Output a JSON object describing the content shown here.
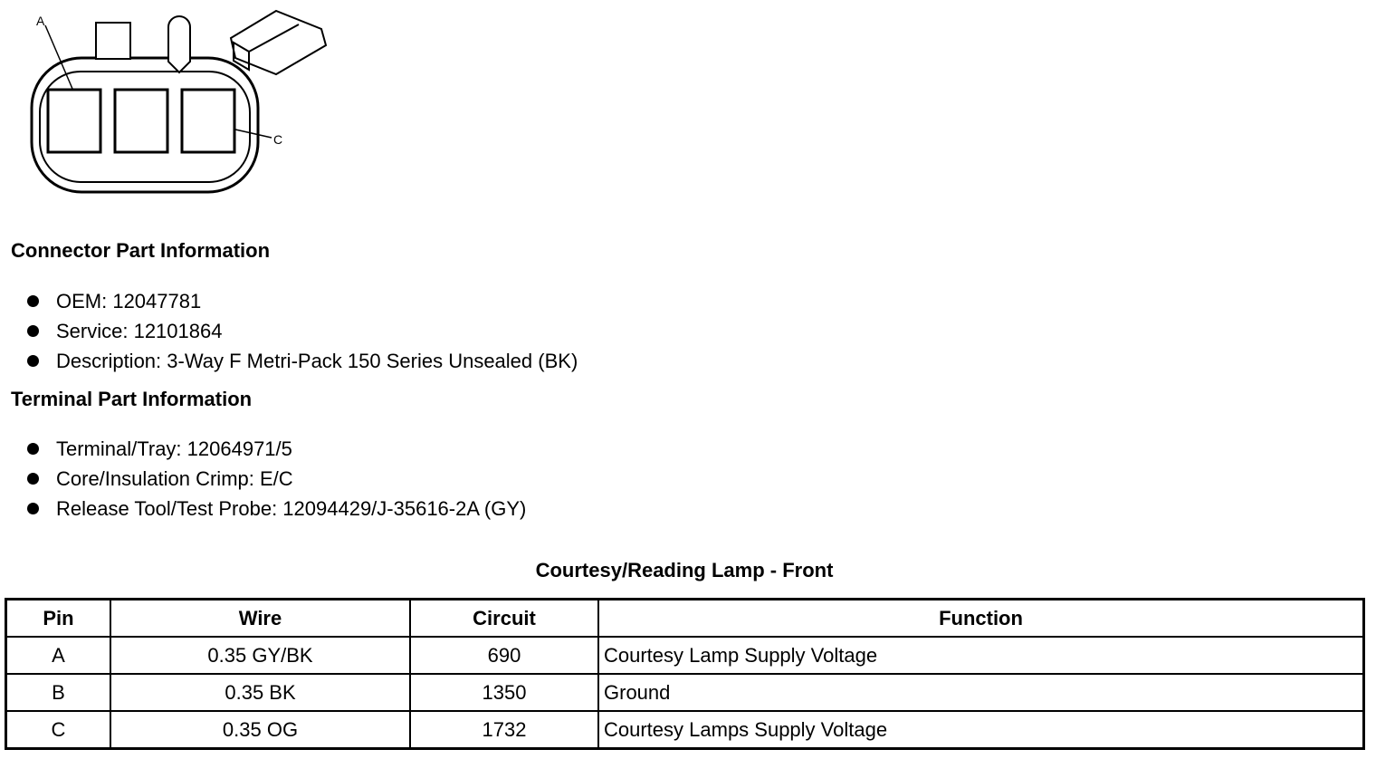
{
  "diagram": {
    "label_a": "A",
    "label_c": "C"
  },
  "connector": {
    "heading": "Connector Part Information",
    "items": [
      "OEM: 12047781",
      "Service: 12101864",
      "Description: 3-Way F Metri-Pack 150 Series Unsealed (BK)"
    ]
  },
  "terminal": {
    "heading": "Terminal Part Information",
    "items": [
      "Terminal/Tray: 12064971/5",
      "Core/Insulation Crimp: E/C",
      "Release Tool/Test Probe: 12094429/J-35616-2A (GY)"
    ]
  },
  "table": {
    "title": "Courtesy/Reading Lamp - Front",
    "headers": [
      "Pin",
      "Wire",
      "Circuit",
      "Function"
    ],
    "rows": [
      [
        "A",
        "0.35 GY/BK",
        "690",
        "Courtesy Lamp Supply Voltage"
      ],
      [
        "B",
        "0.35 BK",
        "1350",
        "Ground"
      ],
      [
        "C",
        "0.35 OG",
        "1732",
        "Courtesy Lamps Supply Voltage"
      ]
    ]
  }
}
